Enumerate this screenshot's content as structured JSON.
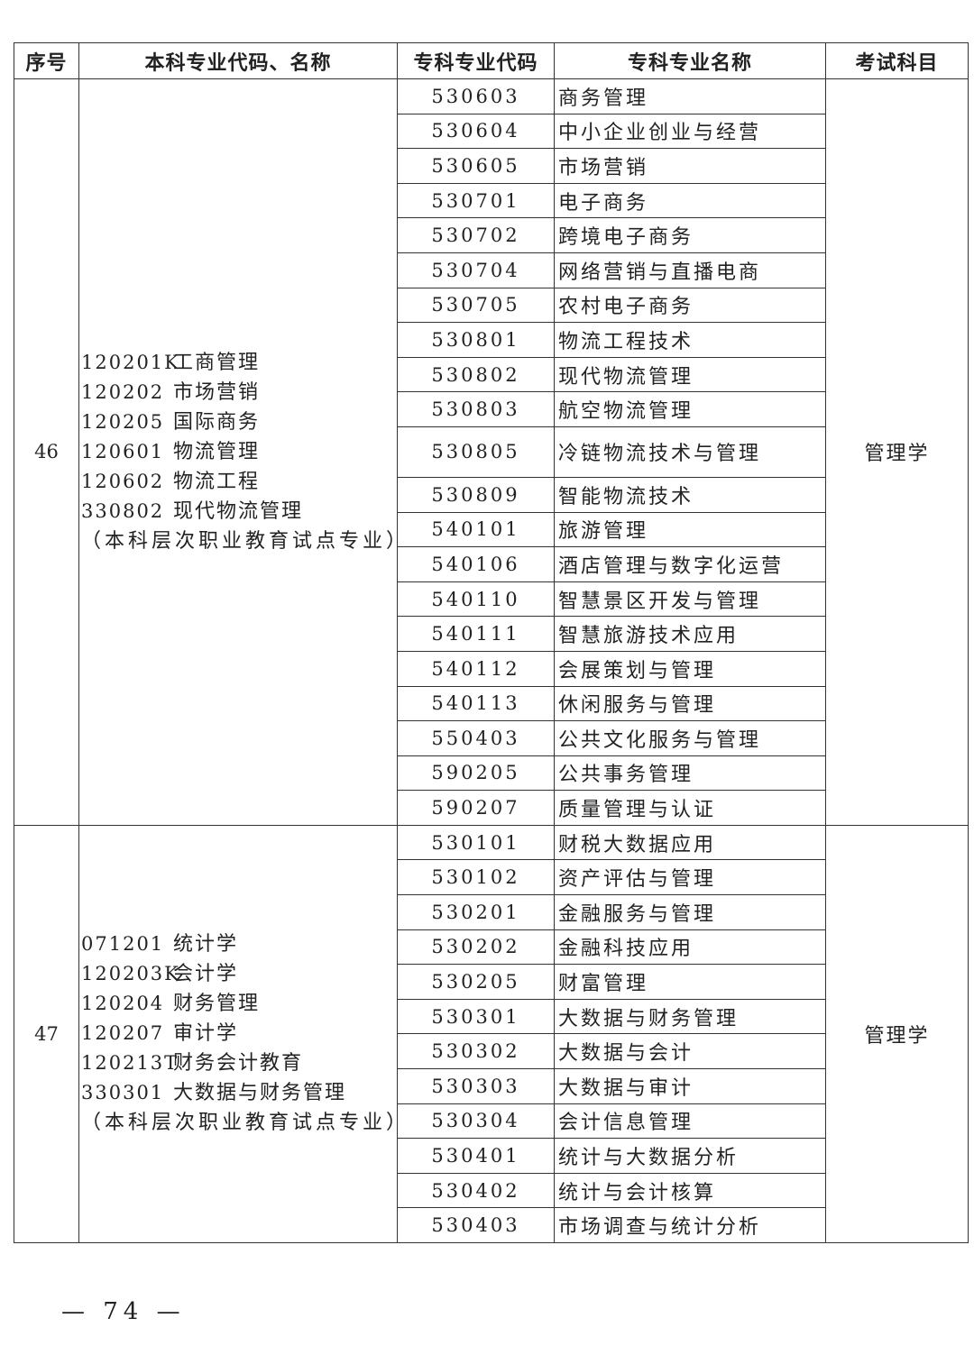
{
  "headers": [
    "序号",
    "本科专业代码、名称",
    "专科专业代码",
    "专科专业名称",
    "考试科目"
  ],
  "groups": [
    {
      "seq": "46",
      "undergrad": [
        {
          "code": "120201K",
          "name": "工商管理"
        },
        {
          "code": "120202",
          "name": "市场营销"
        },
        {
          "code": "120205",
          "name": "国际商务"
        },
        {
          "code": "120601",
          "name": "物流管理"
        },
        {
          "code": "120602",
          "name": "物流工程"
        },
        {
          "code": "330802",
          "name": "现代物流管理"
        }
      ],
      "note": "（本科层次职业教育试点专业）",
      "subject": "管理学",
      "rows": [
        {
          "code": "530603",
          "name": "商务管理"
        },
        {
          "code": "530604",
          "name": "中小企业创业与经营"
        },
        {
          "code": "530605",
          "name": "市场营销"
        },
        {
          "code": "530701",
          "name": "电子商务"
        },
        {
          "code": "530702",
          "name": "跨境电子商务"
        },
        {
          "code": "530704",
          "name": "网络营销与直播电商"
        },
        {
          "code": "530705",
          "name": "农村电子商务"
        },
        {
          "code": "530801",
          "name": "物流工程技术"
        },
        {
          "code": "530802",
          "name": "现代物流管理"
        },
        {
          "code": "530803",
          "name": "航空物流管理"
        },
        {
          "code": "530805",
          "name": "冷链物流技术与管理",
          "tall": true
        },
        {
          "code": "530809",
          "name": "智能物流技术"
        },
        {
          "code": "540101",
          "name": "旅游管理"
        },
        {
          "code": "540106",
          "name": "酒店管理与数字化运营"
        },
        {
          "code": "540110",
          "name": "智慧景区开发与管理"
        },
        {
          "code": "540111",
          "name": "智慧旅游技术应用"
        },
        {
          "code": "540112",
          "name": "会展策划与管理"
        },
        {
          "code": "540113",
          "name": "休闲服务与管理"
        },
        {
          "code": "550403",
          "name": "公共文化服务与管理"
        },
        {
          "code": "590205",
          "name": "公共事务管理"
        },
        {
          "code": "590207",
          "name": "质量管理与认证"
        }
      ]
    },
    {
      "seq": "47",
      "undergrad": [
        {
          "code": "071201",
          "name": "统计学"
        },
        {
          "code": "120203K",
          "name": "会计学"
        },
        {
          "code": "120204",
          "name": "财务管理"
        },
        {
          "code": "120207",
          "name": "审计学"
        },
        {
          "code": "120213T",
          "name": "财务会计教育"
        },
        {
          "code": "330301",
          "name": "大数据与财务管理"
        }
      ],
      "note": "（本科层次职业教育试点专业）",
      "subject": "管理学",
      "rows": [
        {
          "code": "530101",
          "name": "财税大数据应用"
        },
        {
          "code": "530102",
          "name": "资产评估与管理"
        },
        {
          "code": "530201",
          "name": "金融服务与管理"
        },
        {
          "code": "530202",
          "name": "金融科技应用"
        },
        {
          "code": "530205",
          "name": "财富管理"
        },
        {
          "code": "530301",
          "name": "大数据与财务管理"
        },
        {
          "code": "530302",
          "name": "大数据与会计"
        },
        {
          "code": "530303",
          "name": "大数据与审计"
        },
        {
          "code": "530304",
          "name": "会计信息管理"
        },
        {
          "code": "530401",
          "name": "统计与大数据分析"
        },
        {
          "code": "530402",
          "name": "统计与会计核算"
        },
        {
          "code": "530403",
          "name": "市场调查与统计分析"
        }
      ]
    }
  ],
  "footer": {
    "page": "— 74 —"
  }
}
